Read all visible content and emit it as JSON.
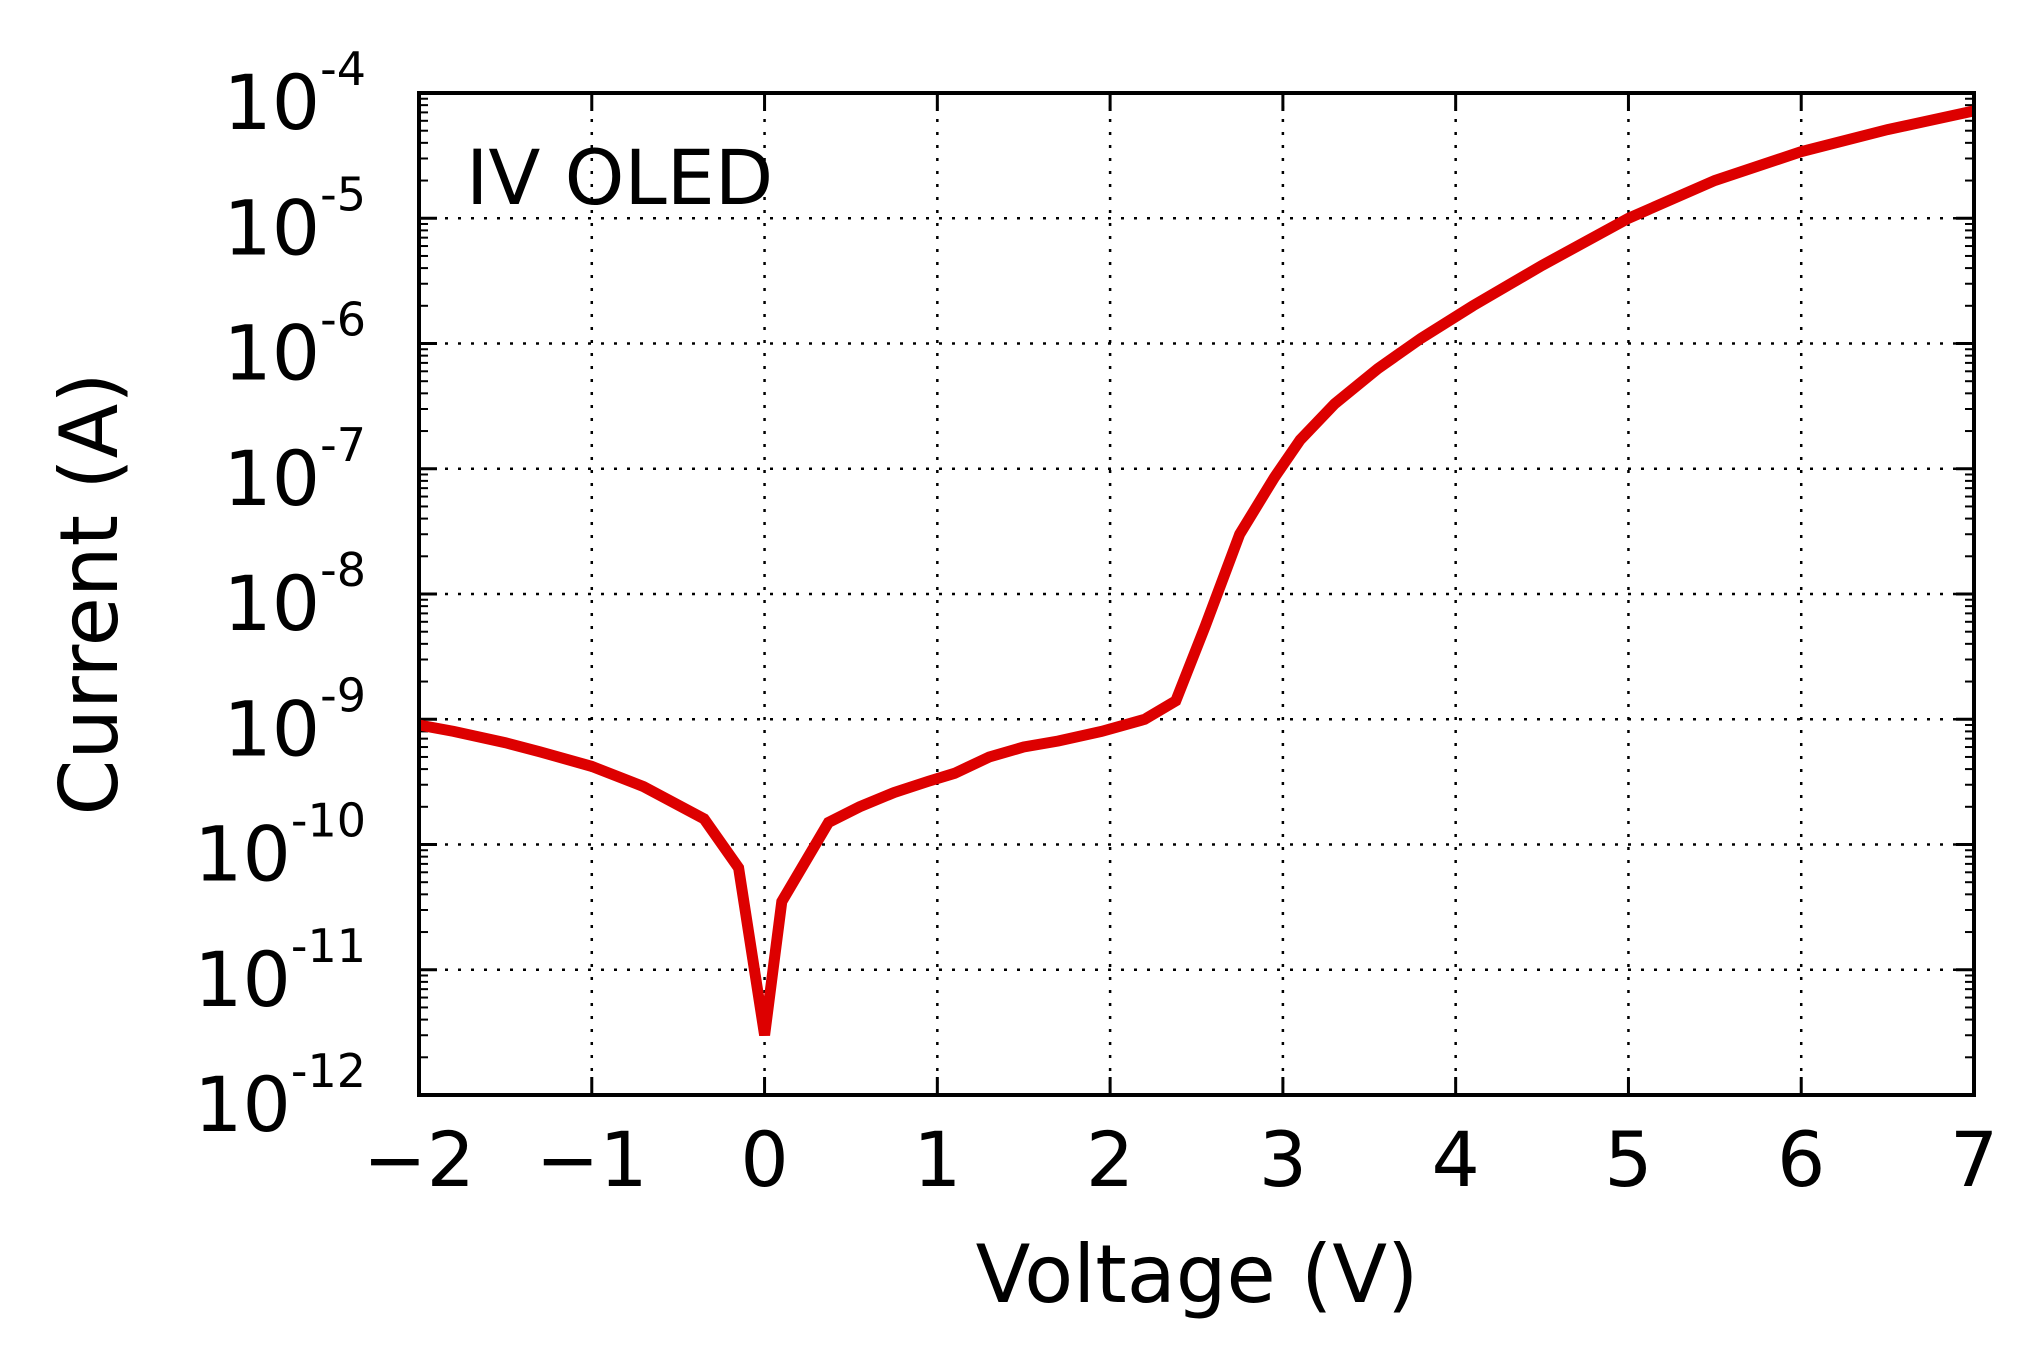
{
  "chart_data": {
    "type": "line",
    "annotation": "IV OLED",
    "xlabel": "Voltage (V)",
    "ylabel": "Current (A)",
    "xlim": [
      -2,
      7
    ],
    "ylim": [
      1e-12,
      0.0001
    ],
    "yscale": "log",
    "grid": true,
    "x_ticks": [
      {
        "value": -2,
        "label": "−2"
      },
      {
        "value": -1,
        "label": "−1"
      },
      {
        "value": 0,
        "label": "0"
      },
      {
        "value": 1,
        "label": "1"
      },
      {
        "value": 2,
        "label": "2"
      },
      {
        "value": 3,
        "label": "3"
      },
      {
        "value": 4,
        "label": "4"
      },
      {
        "value": 5,
        "label": "5"
      },
      {
        "value": 6,
        "label": "6"
      },
      {
        "value": 7,
        "label": "7"
      }
    ],
    "y_ticks": [
      {
        "exp": -4,
        "base": "10",
        "sup": "-4"
      },
      {
        "exp": -5,
        "base": "10",
        "sup": "-5"
      },
      {
        "exp": -6,
        "base": "10",
        "sup": "-6"
      },
      {
        "exp": -7,
        "base": "10",
        "sup": "-7"
      },
      {
        "exp": -8,
        "base": "10",
        "sup": "-8"
      },
      {
        "exp": -9,
        "base": "10",
        "sup": "-9"
      },
      {
        "exp": -10,
        "base": "10",
        "sup": "-10"
      },
      {
        "exp": -11,
        "base": "10",
        "sup": "-11"
      },
      {
        "exp": -12,
        "base": "10",
        "sup": "-12"
      }
    ],
    "series": [
      {
        "color": "#dd0000",
        "x": [
          -2.0,
          -1.8,
          -1.5,
          -1.3,
          -1.0,
          -0.7,
          -0.35,
          -0.15,
          0.0,
          0.1,
          0.37,
          0.55,
          0.75,
          0.95,
          1.1,
          1.3,
          1.5,
          1.7,
          1.95,
          2.2,
          2.38,
          2.55,
          2.75,
          2.95,
          3.1,
          3.3,
          3.55,
          3.8,
          4.1,
          4.5,
          5.0,
          5.5,
          6.0,
          6.5,
          7.0
        ],
        "y": [
          9e-10,
          8e-10,
          6.5e-10,
          5.5e-10,
          4.2e-10,
          2.9e-10,
          1.6e-10,
          6.5e-11,
          3e-12,
          3.5e-11,
          1.5e-10,
          2e-10,
          2.6e-10,
          3.2e-10,
          3.7e-10,
          5e-10,
          6e-10,
          6.7e-10,
          8e-10,
          1e-09,
          1.4e-09,
          5.5e-09,
          3e-08,
          8.5e-08,
          1.7e-07,
          3.3e-07,
          6.3e-07,
          1.1e-06,
          2e-06,
          4.2e-06,
          1e-05,
          2e-05,
          3.4e-05,
          5.1e-05,
          7.2e-05
        ]
      }
    ]
  }
}
